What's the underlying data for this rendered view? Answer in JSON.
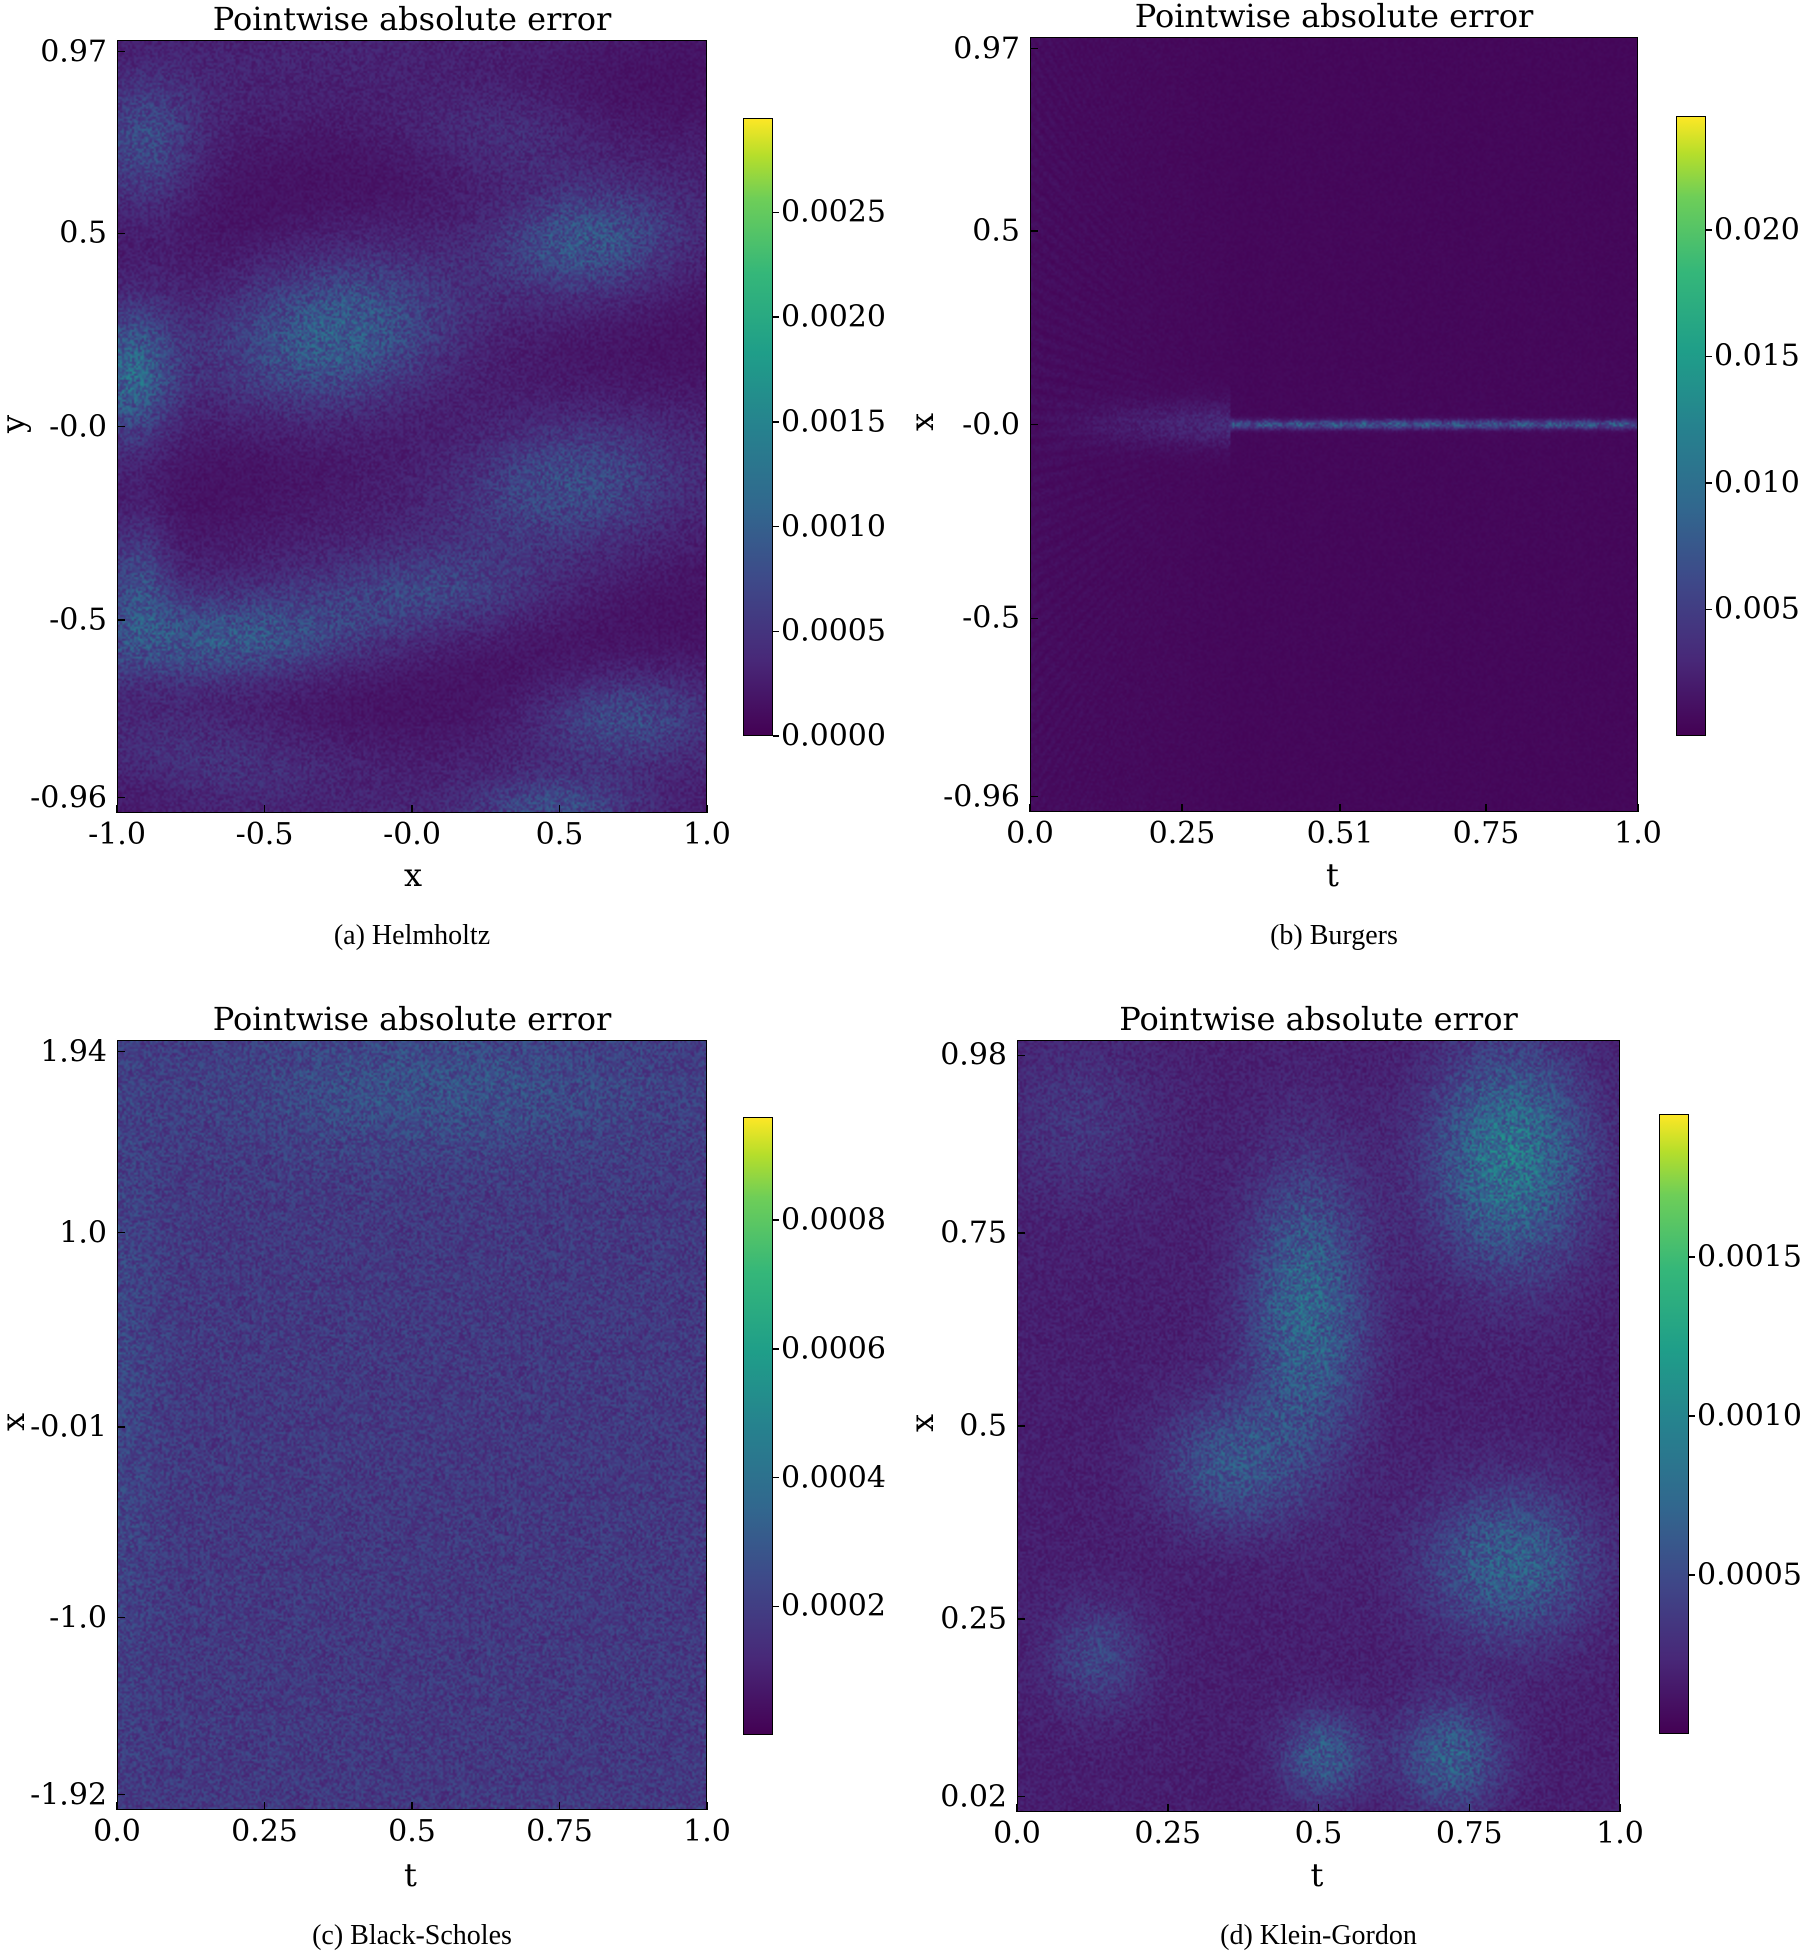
{
  "chart_data": [
    {
      "type": "heatmap",
      "caption": "(a) Helmholtz",
      "title": "Pointwise absolute error",
      "xlabel": "x",
      "ylabel": "y",
      "xlim": [
        -1.0,
        1.0
      ],
      "ylim": [
        -1.0,
        1.0
      ],
      "xticks": [
        {
          "value": -1.0,
          "label": "-1.0"
        },
        {
          "value": -0.5,
          "label": "-0.5"
        },
        {
          "value": 0.0,
          "label": "-0.0"
        },
        {
          "value": 0.5,
          "label": "0.5"
        },
        {
          "value": 1.0,
          "label": "1.0"
        }
      ],
      "yticks": [
        {
          "value": 0.97,
          "label": "0.97"
        },
        {
          "value": 0.5,
          "label": "0.5"
        },
        {
          "value": 0.0,
          "label": "-0.0"
        },
        {
          "value": -0.5,
          "label": "-0.5"
        },
        {
          "value": -0.96,
          "label": "-0.96"
        }
      ],
      "colorbar": {
        "min": 0.0,
        "max": 0.00295,
        "ticks": [
          {
            "value": 0.0,
            "label": "0.0000"
          },
          {
            "value": 0.0005,
            "label": "0.0005"
          },
          {
            "value": 0.001,
            "label": "0.0010"
          },
          {
            "value": 0.0015,
            "label": "0.0015"
          },
          {
            "value": 0.002,
            "label": "0.0020"
          },
          {
            "value": 0.0025,
            "label": "0.0025"
          }
        ]
      },
      "colormap": "viridis",
      "pattern": "helmholtz"
    },
    {
      "type": "heatmap",
      "caption": "(b) Burgers",
      "title": "Pointwise absolute error",
      "xlabel": "t",
      "ylabel": "x",
      "xlim": [
        0.0,
        1.0
      ],
      "ylim": [
        -1.0,
        1.0
      ],
      "xticks": [
        {
          "value": 0.0,
          "label": "0.0"
        },
        {
          "value": 0.25,
          "label": "0.25"
        },
        {
          "value": 0.51,
          "label": "0.51"
        },
        {
          "value": 0.75,
          "label": "0.75"
        },
        {
          "value": 1.0,
          "label": "1.0"
        }
      ],
      "yticks": [
        {
          "value": 0.97,
          "label": "0.97"
        },
        {
          "value": 0.5,
          "label": "0.5"
        },
        {
          "value": 0.0,
          "label": "-0.0"
        },
        {
          "value": -0.5,
          "label": "-0.5"
        },
        {
          "value": -0.96,
          "label": "-0.96"
        }
      ],
      "colorbar": {
        "min": 0.0,
        "max": 0.0245,
        "ticks": [
          {
            "value": 0.005,
            "label": "0.005"
          },
          {
            "value": 0.01,
            "label": "0.010"
          },
          {
            "value": 0.015,
            "label": "0.015"
          },
          {
            "value": 0.02,
            "label": "0.020"
          }
        ]
      },
      "colormap": "viridis",
      "pattern": "burgers"
    },
    {
      "type": "heatmap",
      "caption": "(c) Black-Scholes",
      "title": "Pointwise absolute error",
      "xlabel": "t",
      "ylabel": "x",
      "xlim": [
        0.0,
        1.0
      ],
      "ylim": [
        -2.0,
        2.0
      ],
      "xticks": [
        {
          "value": 0.0,
          "label": "0.0"
        },
        {
          "value": 0.25,
          "label": "0.25"
        },
        {
          "value": 0.5,
          "label": "0.5"
        },
        {
          "value": 0.75,
          "label": "0.75"
        },
        {
          "value": 1.0,
          "label": "1.0"
        }
      ],
      "yticks": [
        {
          "value": 1.94,
          "label": "1.94"
        },
        {
          "value": 1.0,
          "label": "1.0"
        },
        {
          "value": -0.01,
          "label": "-0.01"
        },
        {
          "value": -1.0,
          "label": "-1.0"
        },
        {
          "value": -1.92,
          "label": "-1.92"
        }
      ],
      "colorbar": {
        "min": 0.0,
        "max": 0.00096,
        "ticks": [
          {
            "value": 0.0002,
            "label": "0.0002"
          },
          {
            "value": 0.0004,
            "label": "0.0004"
          },
          {
            "value": 0.0006,
            "label": "0.0006"
          },
          {
            "value": 0.0008,
            "label": "0.0008"
          }
        ]
      },
      "colormap": "viridis",
      "pattern": "blackscholes"
    },
    {
      "type": "heatmap",
      "caption": "(d) Klein-Gordon",
      "title": "Pointwise absolute error",
      "xlabel": "t",
      "ylabel": "x",
      "xlim": [
        0.0,
        1.0
      ],
      "ylim": [
        0.0,
        1.0
      ],
      "xticks": [
        {
          "value": 0.0,
          "label": "0.0"
        },
        {
          "value": 0.25,
          "label": "0.25"
        },
        {
          "value": 0.5,
          "label": "0.5"
        },
        {
          "value": 0.75,
          "label": "0.75"
        },
        {
          "value": 1.0,
          "label": "1.0"
        }
      ],
      "yticks": [
        {
          "value": 0.98,
          "label": "0.98"
        },
        {
          "value": 0.75,
          "label": "0.75"
        },
        {
          "value": 0.5,
          "label": "0.5"
        },
        {
          "value": 0.25,
          "label": "0.25"
        },
        {
          "value": 0.02,
          "label": "0.02"
        }
      ],
      "colorbar": {
        "min": 0.0,
        "max": 0.00195,
        "ticks": [
          {
            "value": 0.0005,
            "label": "0.0005"
          },
          {
            "value": 0.001,
            "label": "0.0010"
          },
          {
            "value": 0.0015,
            "label": "0.0015"
          }
        ]
      },
      "colormap": "viridis",
      "pattern": "kleingordon"
    }
  ]
}
